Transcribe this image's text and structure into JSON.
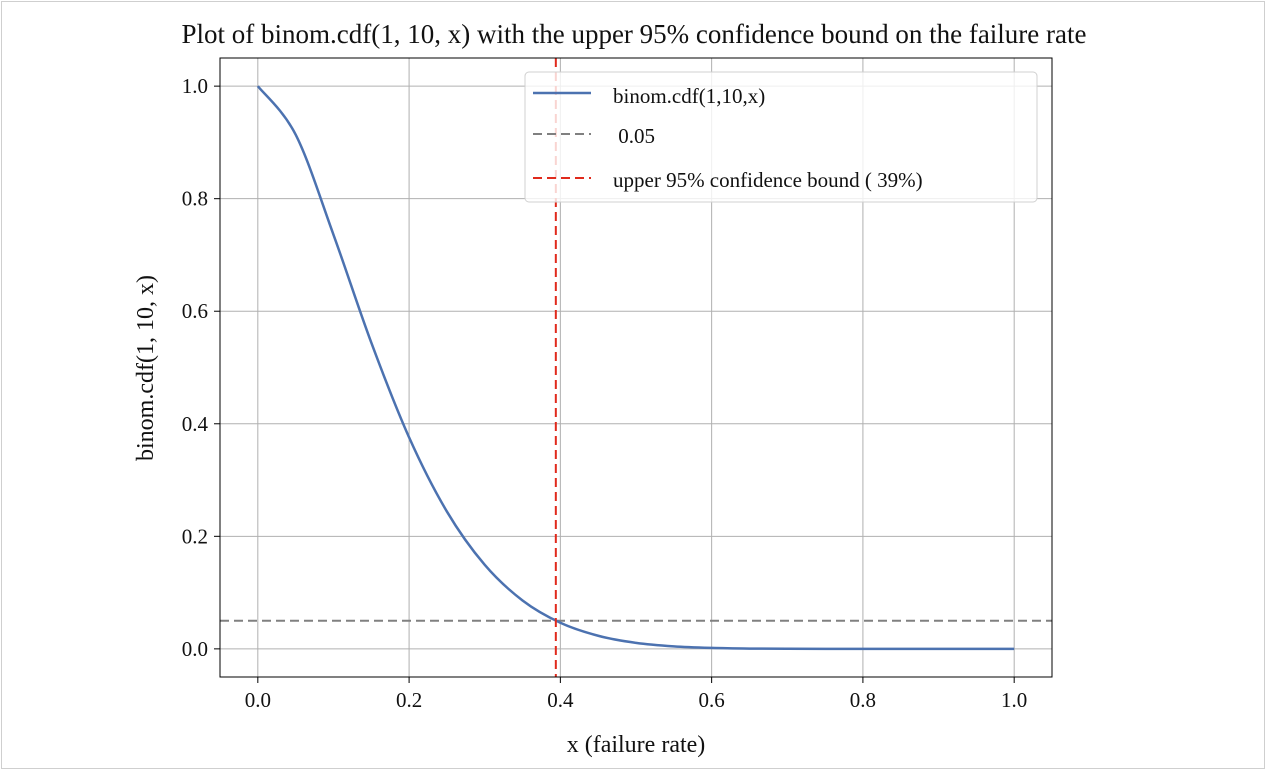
{
  "chart_data": {
    "type": "line",
    "title": "Plot of binom.cdf(1, 10, x) with the upper 95% confidence bound on the failure rate",
    "xlabel": "x (failure rate)",
    "ylabel": "binom.cdf(1, 10, x)",
    "xlim": [
      -0.05,
      1.05
    ],
    "ylim": [
      -0.05,
      1.05
    ],
    "xticks": [
      0.0,
      0.2,
      0.4,
      0.6,
      0.8,
      1.0
    ],
    "xtick_labels": [
      "0.0",
      "0.2",
      "0.4",
      "0.6",
      "0.8",
      "1.0"
    ],
    "yticks": [
      0.0,
      0.2,
      0.4,
      0.6,
      0.8,
      1.0
    ],
    "ytick_labels": [
      "0.0",
      "0.2",
      "0.4",
      "0.6",
      "0.8",
      "1.0"
    ],
    "grid": true,
    "legend_placement": "upper-right",
    "series": [
      {
        "name": "binom.cdf(1,10,x)",
        "color": "#4c72b0",
        "style": "solid",
        "x": [
          0.0,
          0.05,
          0.1,
          0.15,
          0.2,
          0.25,
          0.3,
          0.35,
          0.4,
          0.45,
          0.5,
          0.55,
          0.6,
          0.65,
          0.7,
          0.75,
          0.8,
          0.85,
          0.9,
          0.95,
          1.0
        ],
        "y": [
          1.0,
          0.9139,
          0.7361,
          0.5443,
          0.3758,
          0.244,
          0.1493,
          0.086,
          0.0464,
          0.0233,
          0.0107,
          0.0045,
          0.0017,
          0.0005,
          0.0001,
          0.0,
          0.0,
          0.0,
          0.0,
          0.0,
          0.0
        ]
      }
    ],
    "hlines": [
      {
        "name": " 0.05",
        "y": 0.05,
        "color": "#808080",
        "style": "dashed"
      }
    ],
    "vlines": [
      {
        "name": "upper 95% confidence bound ( 39%)",
        "x": 0.394,
        "color": "#e02a1c",
        "style": "dashed"
      }
    ]
  }
}
